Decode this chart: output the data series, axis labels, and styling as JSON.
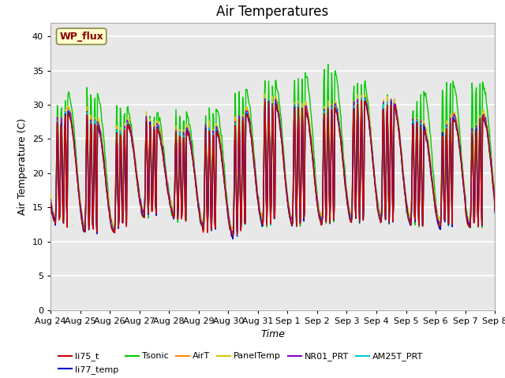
{
  "title": "Air Temperatures",
  "xlabel": "Time",
  "ylabel": "Air Temperature (C)",
  "ylim": [
    0,
    42
  ],
  "yticks": [
    0,
    5,
    10,
    15,
    20,
    25,
    30,
    35,
    40
  ],
  "series_colors": {
    "li75_t": "#cc0000",
    "li77_temp": "#0000cc",
    "Tsonic": "#00cc00",
    "AirT": "#ff8800",
    "PanelTemp": "#cccc00",
    "NR01_PRT": "#8800cc",
    "AM25T_PRT": "#00cccc"
  },
  "wp_flux_box_color": "#ffffcc",
  "wp_flux_text_color": "#880000",
  "wp_flux_border_color": "#888844",
  "plot_bg_color": "#e8e8e8",
  "grid_color": "#ffffff",
  "title_fontsize": 12,
  "axis_fontsize": 9,
  "tick_fontsize": 8,
  "x_labels": [
    "Aug 24",
    "Aug 25",
    "Aug 26",
    "Aug 27",
    "Aug 28",
    "Aug 29",
    "Aug 30",
    "Aug 31",
    "Sep 1",
    "Sep 2",
    "Sep 3",
    "Sep 4",
    "Sep 5",
    "Sep 6",
    "Sep 7",
    "Sep 8"
  ],
  "n_days": 15,
  "daily_min": 13.0,
  "daily_amplitude": 13.0,
  "tsonic_extra": 6.5,
  "night_min_values": [
    13.0,
    11.5,
    11.0,
    13.5,
    14.0,
    12.0,
    10.5,
    12.5,
    12.5,
    12.5,
    13.0,
    13.0,
    12.5,
    12.0,
    12.5
  ],
  "day_max_values": [
    27.0,
    30.0,
    25.0,
    28.5,
    25.5,
    26.5,
    26.0,
    30.5,
    30.0,
    29.0,
    30.0,
    31.0,
    29.0,
    25.0,
    30.0
  ],
  "tsonic_day_max": [
    29.5,
    33.0,
    30.5,
    28.5,
    29.0,
    28.5,
    30.5,
    33.5,
    33.0,
    36.0,
    34.0,
    32.5,
    29.0,
    34.0,
    32.5
  ]
}
